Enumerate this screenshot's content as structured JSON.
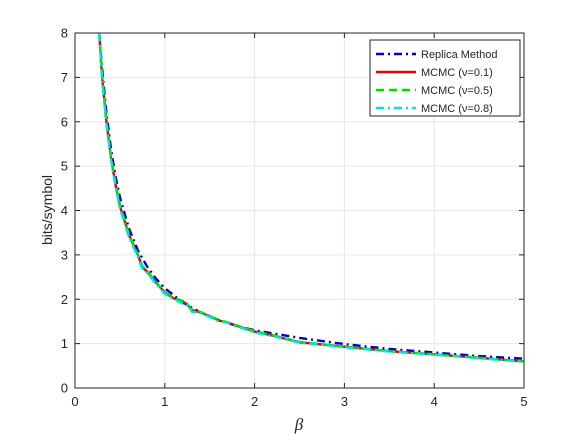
{
  "chart_data": {
    "type": "line",
    "xlabel": "β",
    "ylabel": "bits/symbol",
    "xlim": [
      0,
      5
    ],
    "ylim": [
      0,
      8
    ],
    "xticks": [
      0,
      1,
      2,
      3,
      4,
      5
    ],
    "yticks": [
      0,
      1,
      2,
      3,
      4,
      5,
      6,
      7,
      8
    ],
    "grid": true,
    "legend_position": "top-right",
    "series": [
      {
        "name": "Replica Method",
        "color": "#0000cc",
        "dash": "dash-dot",
        "x": [
          0.27,
          0.3,
          0.35,
          0.4,
          0.45,
          0.5,
          0.6,
          0.7,
          0.8,
          0.9,
          1.0,
          1.2,
          1.4,
          1.6,
          1.8,
          2.0,
          2.5,
          3.0,
          3.5,
          4.0,
          4.5,
          5.0
        ],
        "y": [
          8.0,
          7.25,
          6.2,
          5.4,
          4.78,
          4.3,
          3.6,
          3.1,
          2.75,
          2.47,
          2.25,
          1.93,
          1.7,
          1.53,
          1.4,
          1.3,
          1.13,
          0.99,
          0.88,
          0.8,
          0.72,
          0.66
        ]
      },
      {
        "name": "MCMC (ν=0.1)",
        "color": "#e60000",
        "dash": "solid",
        "x": [
          0.27,
          0.3,
          0.35,
          0.4,
          0.45,
          0.5,
          0.55,
          0.6,
          0.7,
          0.75,
          0.8,
          0.9,
          1.0,
          1.1,
          1.2,
          1.25,
          1.3,
          1.4,
          1.5,
          1.6,
          1.7,
          1.8,
          2.0,
          2.2,
          2.5,
          3.0,
          3.5,
          4.0,
          4.5,
          5.0
        ],
        "y": [
          8.0,
          7.05,
          6.0,
          5.2,
          4.6,
          4.1,
          3.78,
          3.45,
          3.0,
          2.72,
          2.63,
          2.38,
          2.15,
          2.02,
          1.95,
          1.88,
          1.76,
          1.7,
          1.62,
          1.52,
          1.48,
          1.4,
          1.27,
          1.18,
          1.03,
          0.93,
          0.83,
          0.76,
          0.68,
          0.6
        ]
      },
      {
        "name": "MCMC (ν=0.5)",
        "color": "#00dd00",
        "dash": "dashed",
        "x": [
          0.27,
          0.3,
          0.35,
          0.4,
          0.45,
          0.5,
          0.55,
          0.6,
          0.7,
          0.75,
          0.8,
          0.9,
          1.0,
          1.1,
          1.2,
          1.25,
          1.3,
          1.4,
          1.5,
          1.6,
          1.7,
          1.8,
          2.0,
          2.2,
          2.5,
          3.0,
          3.5,
          4.0,
          4.5,
          5.0
        ],
        "y": [
          8.0,
          7.08,
          6.02,
          5.22,
          4.62,
          4.12,
          3.8,
          3.47,
          3.01,
          2.74,
          2.65,
          2.39,
          2.16,
          2.03,
          1.96,
          1.89,
          1.77,
          1.71,
          1.62,
          1.53,
          1.48,
          1.41,
          1.28,
          1.19,
          1.04,
          0.93,
          0.83,
          0.76,
          0.68,
          0.6
        ]
      },
      {
        "name": "MCMC (ν=0.8)",
        "color": "#00e5e5",
        "dash": "dash-dot",
        "x": [
          0.27,
          0.3,
          0.35,
          0.4,
          0.45,
          0.5,
          0.55,
          0.6,
          0.7,
          0.75,
          0.8,
          0.9,
          1.0,
          1.1,
          1.2,
          1.25,
          1.3,
          1.4,
          1.5,
          1.6,
          1.7,
          1.8,
          2.0,
          2.2,
          2.5,
          3.0,
          3.5,
          4.0,
          4.5,
          5.0
        ],
        "y": [
          8.0,
          7.0,
          5.95,
          5.15,
          4.55,
          4.05,
          3.72,
          3.4,
          2.95,
          2.68,
          2.6,
          2.35,
          2.12,
          2.0,
          1.9,
          1.9,
          1.72,
          1.69,
          1.6,
          1.5,
          1.47,
          1.39,
          1.25,
          1.17,
          1.02,
          0.92,
          0.82,
          0.75,
          0.67,
          0.59
        ]
      }
    ]
  }
}
